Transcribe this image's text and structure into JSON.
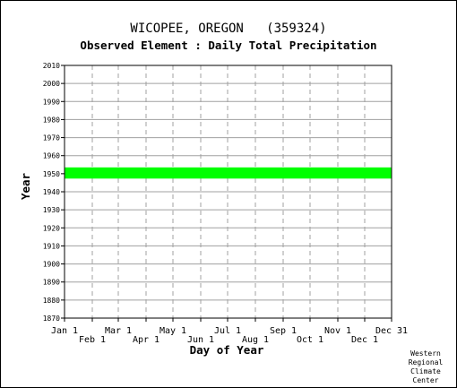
{
  "chart_data": {
    "type": "bar",
    "title": "WICOPEE, OREGON   (359324)",
    "subtitle": "Observed Element : Daily Total Precipitation",
    "xlabel": "Day of Year",
    "ylabel": "Year",
    "ylim": [
      1870,
      2010
    ],
    "y_ticks": [
      1870,
      1880,
      1890,
      1900,
      1910,
      1920,
      1930,
      1940,
      1950,
      1960,
      1970,
      1980,
      1990,
      2000,
      2010
    ],
    "xlim": [
      1,
      366
    ],
    "x_ticks": [
      {
        "label": "Jan 1",
        "day": 1,
        "row": "top"
      },
      {
        "label": "Feb 1",
        "day": 32,
        "row": "bottom"
      },
      {
        "label": "Mar 1",
        "day": 61,
        "row": "top"
      },
      {
        "label": "Apr 1",
        "day": 92,
        "row": "bottom"
      },
      {
        "label": "May 1",
        "day": 122,
        "row": "top"
      },
      {
        "label": "Jun 1",
        "day": 153,
        "row": "bottom"
      },
      {
        "label": "Jul 1",
        "day": 183,
        "row": "top"
      },
      {
        "label": "Aug 1",
        "day": 214,
        "row": "bottom"
      },
      {
        "label": "Sep 1",
        "day": 245,
        "row": "top"
      },
      {
        "label": "Oct 1",
        "day": 275,
        "row": "bottom"
      },
      {
        "label": "Nov 1",
        "day": 306,
        "row": "top"
      },
      {
        "label": "Dec 1",
        "day": 336,
        "row": "bottom"
      },
      {
        "label": "Dec 31",
        "day": 366,
        "row": "top"
      }
    ],
    "grid": "horizontal solid, vertical dashed",
    "color": "#00ff00",
    "series": [
      {
        "values": [
          {
            "year": 1948,
            "start": 1,
            "end": 365
          },
          {
            "year": 1949,
            "start": 1,
            "end": 365
          },
          {
            "year": 1950,
            "start": 1,
            "end": 365
          },
          {
            "year": 1951,
            "start": 1,
            "end": 365
          },
          {
            "year": 1952,
            "start": 1,
            "end": 365
          },
          {
            "year": 1953,
            "start": 1,
            "end": 365
          }
        ]
      }
    ]
  },
  "credit": [
    "Western",
    "Regional",
    "Climate",
    "Center"
  ]
}
